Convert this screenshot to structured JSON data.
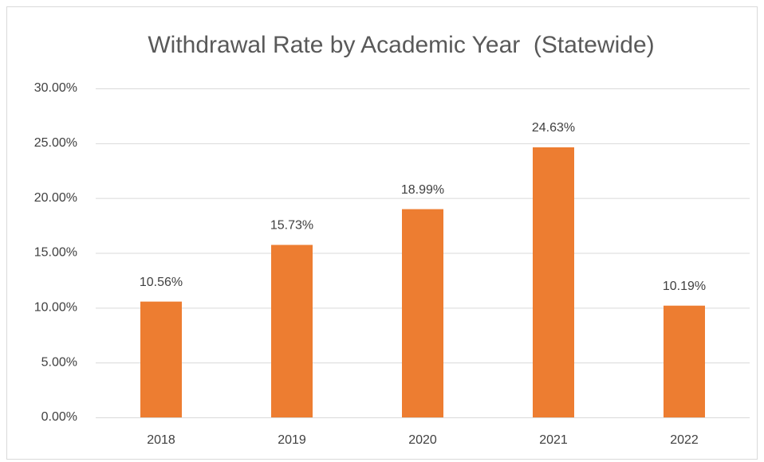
{
  "chart_data": {
    "type": "bar",
    "title": "Withdrawal Rate by Academic Year  (Statewide)",
    "categories": [
      "2018",
      "2019",
      "2020",
      "2021",
      "2022"
    ],
    "values": [
      10.56,
      15.73,
      18.99,
      24.63,
      10.19
    ],
    "value_labels": [
      "10.56%",
      "15.73%",
      "18.99%",
      "24.63%",
      "10.19%"
    ],
    "color": "#ed7d31",
    "ylim": [
      0,
      30
    ],
    "yticks": [
      {
        "value": 0,
        "label": "0.00%"
      },
      {
        "value": 5,
        "label": "5.00%"
      },
      {
        "value": 10,
        "label": "10.00%"
      },
      {
        "value": 15,
        "label": "15.00%"
      },
      {
        "value": 20,
        "label": "20.00%"
      },
      {
        "value": 25,
        "label": "25.00%"
      },
      {
        "value": 30,
        "label": "30.00%"
      }
    ],
    "grid": true
  }
}
